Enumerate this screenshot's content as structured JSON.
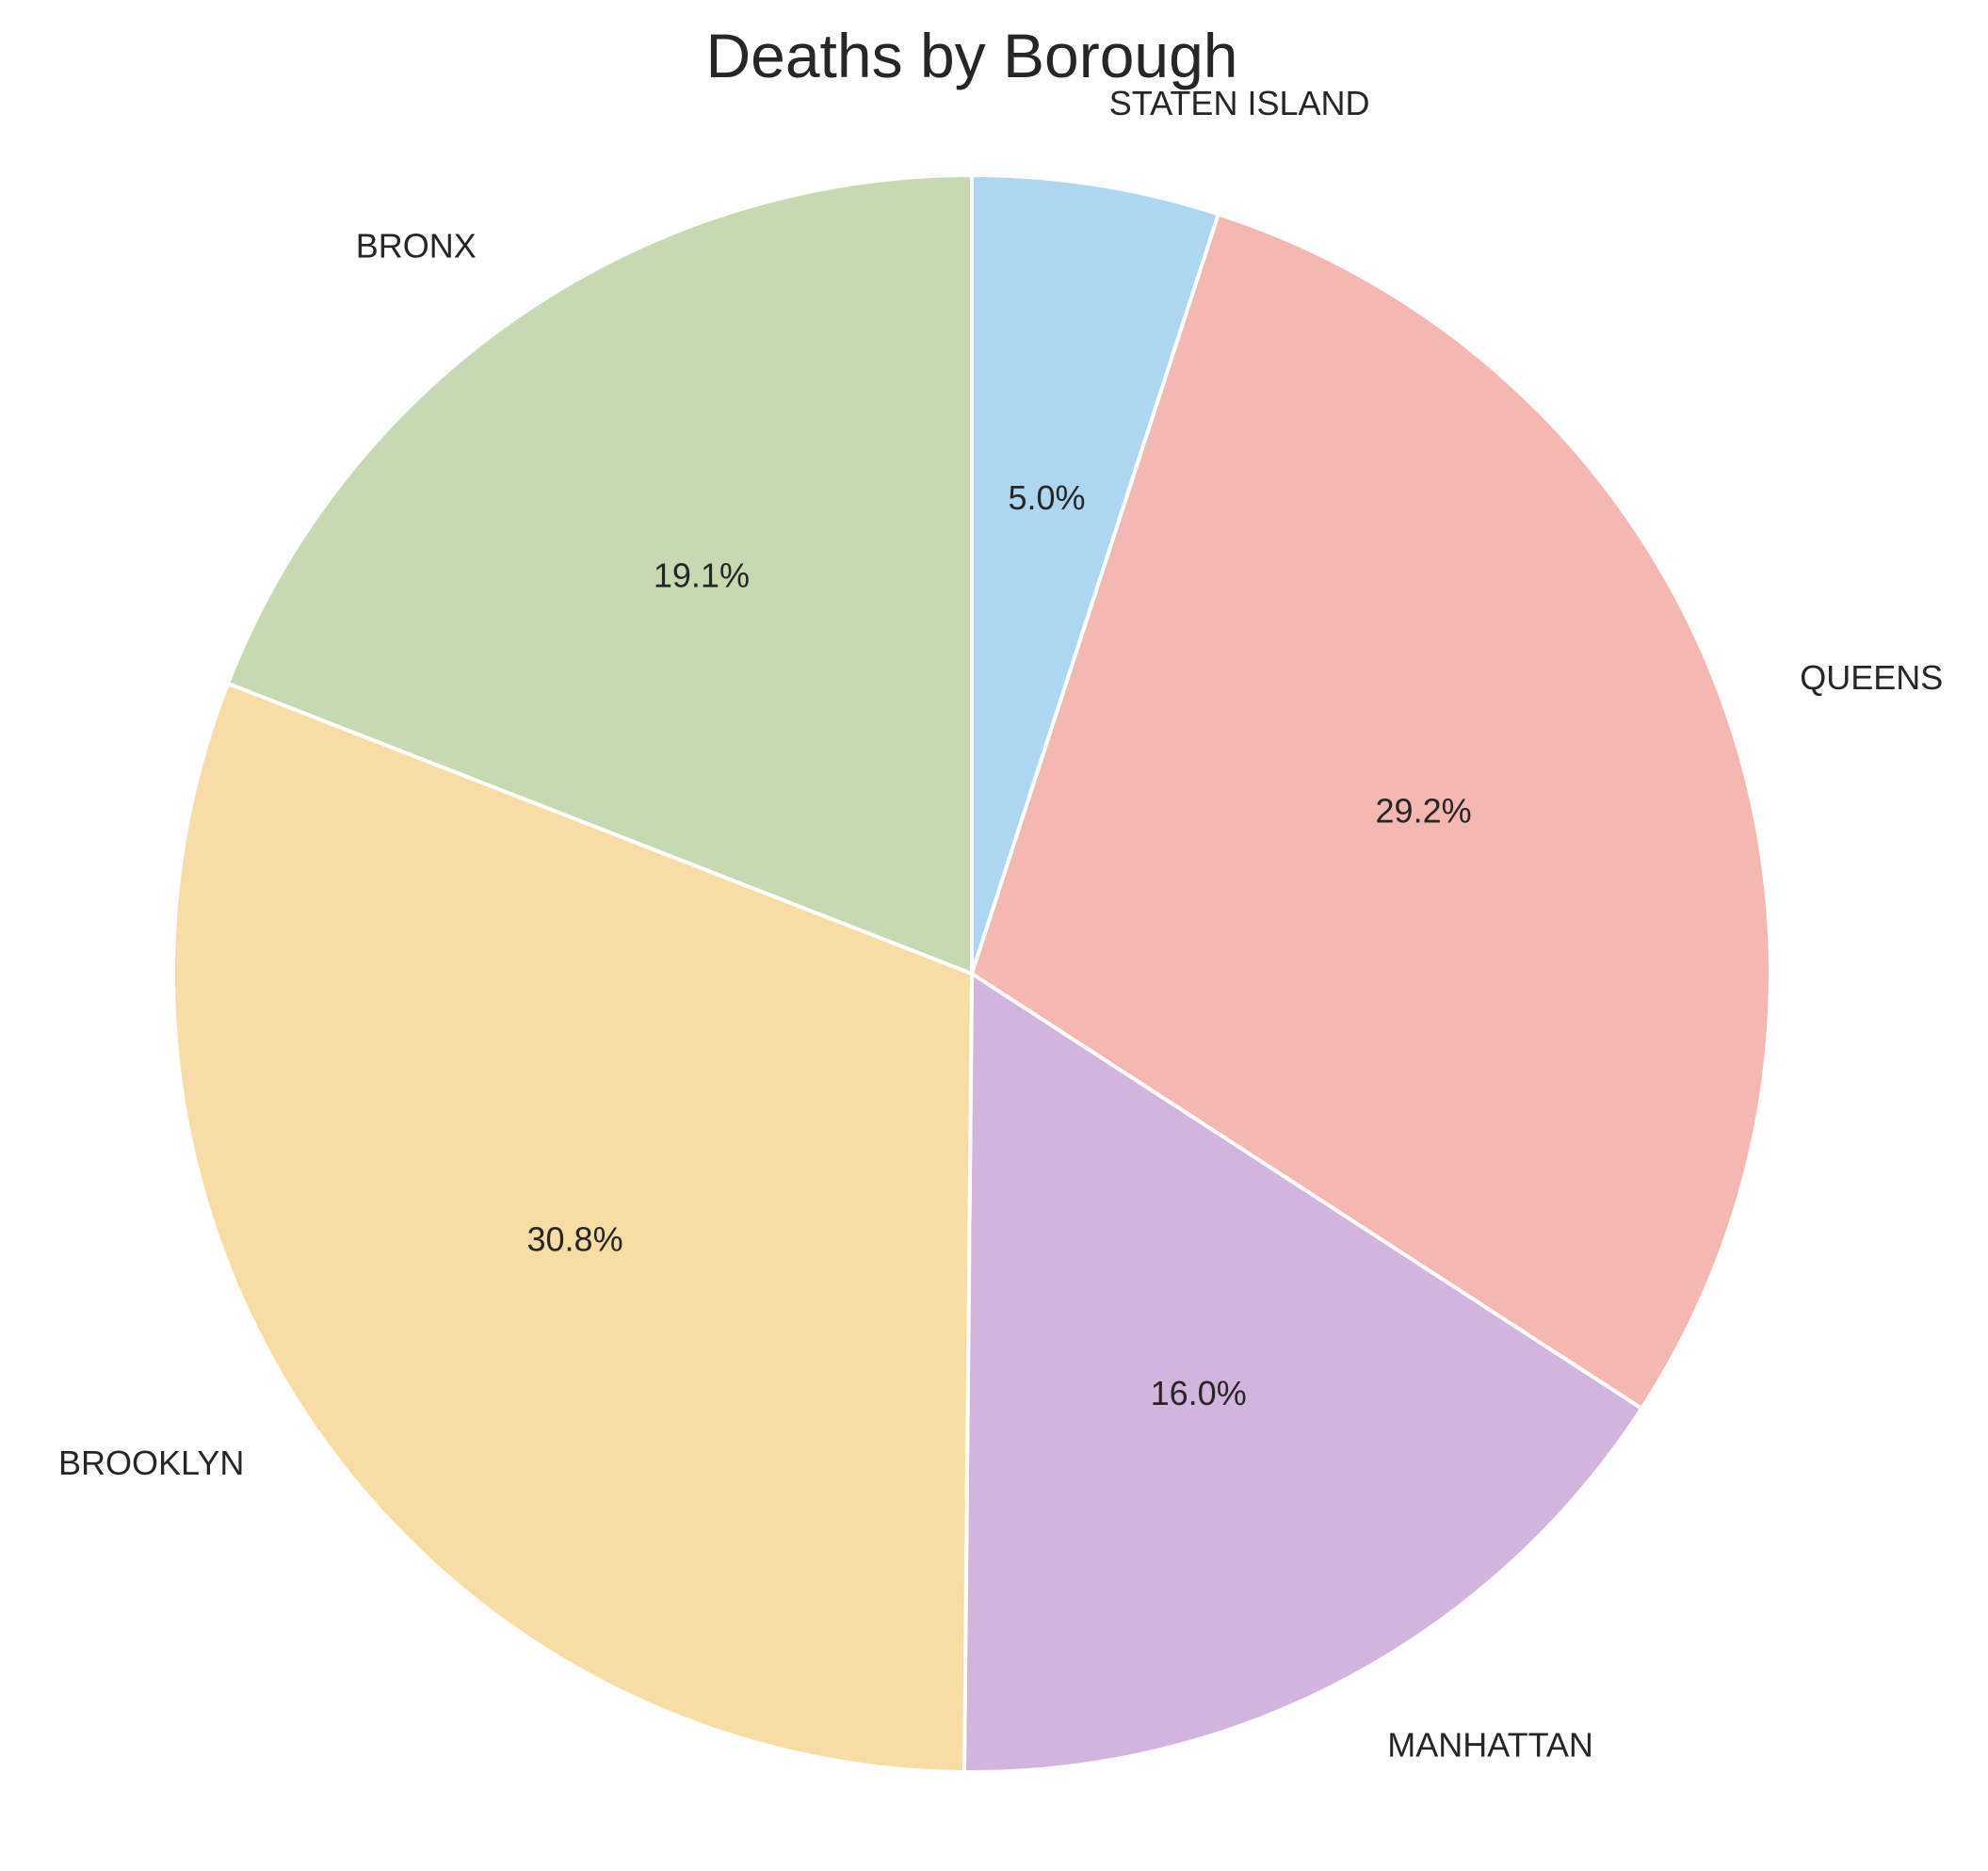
{
  "chart_data": {
    "type": "pie",
    "title": "Deaths by Borough",
    "slices": [
      {
        "label": "STATEN ISLAND",
        "value": 5.0,
        "pct_label": "5.0%",
        "color": "#AED6F1"
      },
      {
        "label": "QUEENS",
        "value": 29.2,
        "pct_label": "29.2%",
        "color": "#F5B7B1"
      },
      {
        "label": "MANHATTAN",
        "value": 16.0,
        "pct_label": "16.0%",
        "color": "#D2B4DE"
      },
      {
        "label": "BROOKLYN",
        "value": 30.8,
        "pct_label": "30.8%",
        "color": "#F7DCA6"
      },
      {
        "label": "BRONX",
        "value": 19.1,
        "pct_label": "19.1%",
        "color": "#C6D9B0"
      }
    ],
    "start_angle_deg": 90,
    "direction": "clockwise",
    "legend": "none"
  }
}
